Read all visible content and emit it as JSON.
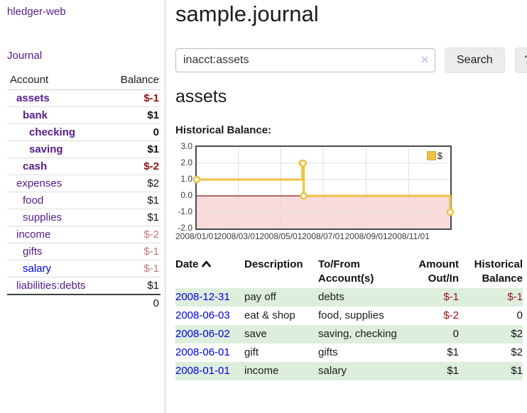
{
  "app": {
    "brand": "hledger-web"
  },
  "sidebar": {
    "journal_link": "Journal",
    "accounts": {
      "col_account": "Account",
      "col_balance": "Balance",
      "rows": [
        {
          "name": "assets",
          "balance": "$-1",
          "indent": 1,
          "bold": true,
          "neg": "strong"
        },
        {
          "name": "bank",
          "balance": "$1",
          "indent": 2,
          "bold": true,
          "neg": "none"
        },
        {
          "name": "checking",
          "balance": "0",
          "indent": 3,
          "bold": true,
          "neg": "none"
        },
        {
          "name": "saving",
          "balance": "$1",
          "indent": 3,
          "bold": true,
          "neg": "none"
        },
        {
          "name": "cash",
          "balance": "$-2",
          "indent": 2,
          "bold": true,
          "neg": "strong"
        },
        {
          "name": "expenses",
          "balance": "$2",
          "indent": 1,
          "bold": false,
          "neg": "none"
        },
        {
          "name": "food",
          "balance": "$1",
          "indent": 2,
          "bold": false,
          "neg": "none"
        },
        {
          "name": "supplies",
          "balance": "$1",
          "indent": 2,
          "bold": false,
          "neg": "none"
        },
        {
          "name": "income",
          "balance": "$-2",
          "indent": 1,
          "bold": false,
          "neg": "dim"
        },
        {
          "name": "gifts",
          "balance": "$-1",
          "indent": 2,
          "bold": false,
          "neg": "dim"
        },
        {
          "name": "salary",
          "balance": "$-1",
          "indent": 2,
          "bold": false,
          "neg": "dim",
          "link_color": "blue"
        },
        {
          "name": "liabilities:debts",
          "balance": "$1",
          "indent": 1,
          "bold": false,
          "neg": "none"
        }
      ],
      "total": "0"
    }
  },
  "main": {
    "title": "sample.journal",
    "search": {
      "value": "inacct:assets",
      "clear_icon": "✕",
      "search_button": "Search",
      "help_button": "?"
    },
    "account_heading": "assets",
    "chart_title": "Historical Balance:",
    "register": {
      "headers": {
        "date": "Date",
        "description": "Description",
        "account": "To/From Account(s)",
        "amount": "Amount Out/In",
        "balance": "Historical Balance"
      },
      "rows": [
        {
          "date": "2008-12-31",
          "description": "pay off",
          "accounts": "debts",
          "amount": "$-1",
          "amount_neg": true,
          "balance": "$-1",
          "balance_neg": true
        },
        {
          "date": "2008-06-03",
          "description": "eat & shop",
          "accounts": "food, supplies",
          "amount": "$-2",
          "amount_neg": true,
          "balance": "0",
          "balance_neg": false
        },
        {
          "date": "2008-06-02",
          "description": "save",
          "accounts": "saving, checking",
          "amount": "0",
          "amount_neg": false,
          "balance": "$2",
          "balance_neg": false
        },
        {
          "date": "2008-06-01",
          "description": "gift",
          "accounts": "gifts",
          "amount": "$1",
          "amount_neg": false,
          "balance": "$2",
          "balance_neg": false
        },
        {
          "date": "2008-01-01",
          "description": "income",
          "accounts": "salary",
          "amount": "$1",
          "amount_neg": false,
          "balance": "$1",
          "balance_neg": false
        }
      ]
    }
  },
  "chart_data": {
    "type": "line",
    "title": "Historical Balance:",
    "series": [
      {
        "name": "$",
        "color": "#edc240",
        "steps": true,
        "points": [
          [
            "2008-01-01",
            1
          ],
          [
            "2008-06-01",
            2
          ],
          [
            "2008-06-02",
            2
          ],
          [
            "2008-06-03",
            0
          ],
          [
            "2008-12-31",
            -1
          ]
        ]
      }
    ],
    "xlim": [
      "2008-01-01",
      "2008-12-31"
    ],
    "ylim": [
      -2,
      3
    ],
    "yticks": [
      3,
      2,
      1,
      0,
      -1,
      -2
    ],
    "ytick_labels": [
      "3.0",
      "2.0",
      "1.0",
      "0.0",
      "-1.0",
      "-2.0"
    ],
    "xticks": [
      "2008-01-01",
      "2008-03-01",
      "2008-05-01",
      "2008-07-01",
      "2008-09-01",
      "2008-11-01"
    ],
    "xtick_labels": [
      "2008/01/01",
      "2008/03/01",
      "2008/05/01",
      "2008/07/01",
      "2008/09/01",
      "2008/11/01"
    ],
    "legend": {
      "label": "$",
      "position": "top-right"
    },
    "grid": true,
    "colors": {
      "negative_region": "#f9dbdb",
      "zero_line": "#8c1717",
      "gridline": "#dddddd",
      "plot_border": "#4a4a4a",
      "marker_fill": "#ffffff"
    }
  }
}
